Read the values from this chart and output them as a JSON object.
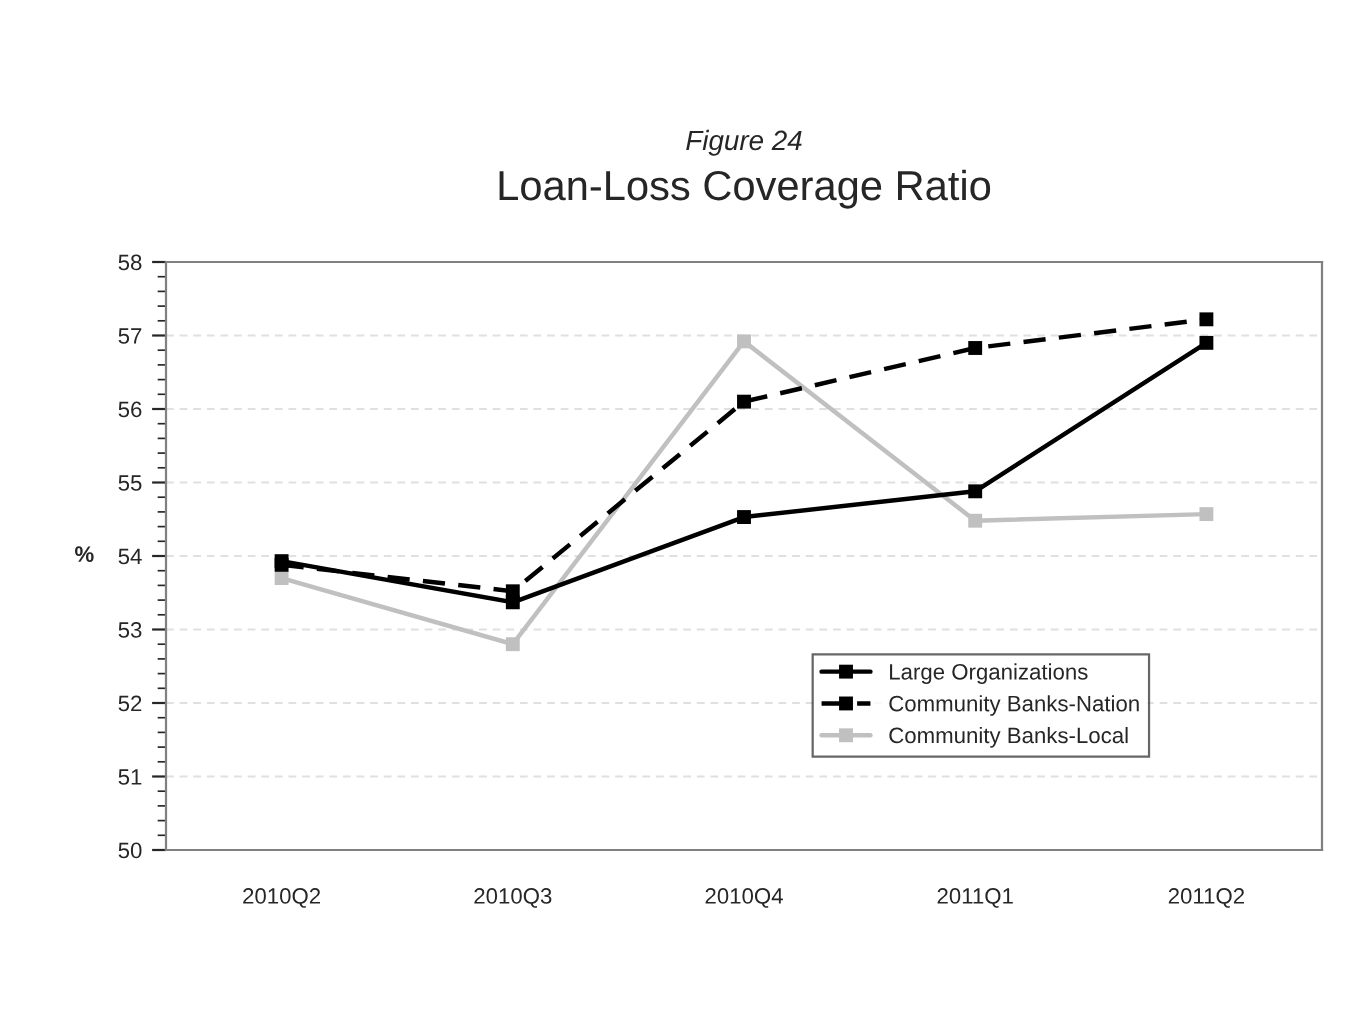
{
  "chart_data": {
    "type": "line",
    "subtitle": "Figure 24",
    "title": "Loan-Loss Coverage Ratio",
    "ylabel": "%",
    "categories": [
      "2010Q2",
      "2010Q3",
      "2010Q4",
      "2011Q1",
      "2011Q2"
    ],
    "series": [
      {
        "name": "Large Organizations",
        "color": "#000000",
        "line_style": "solid",
        "values": [
          53.93,
          53.37,
          54.53,
          54.88,
          56.9
        ]
      },
      {
        "name": "Community Banks-Nation",
        "color": "#000000",
        "line_style": "dashed",
        "values": [
          53.88,
          53.52,
          56.1,
          56.83,
          57.22
        ]
      },
      {
        "name": "Community Banks-Local",
        "color": "#c0c0c0",
        "line_style": "solid",
        "values": [
          53.7,
          52.8,
          56.92,
          54.48,
          54.57
        ]
      }
    ],
    "ylim": [
      50,
      58
    ],
    "yticks": [
      50,
      51,
      52,
      53,
      54,
      55,
      56,
      57,
      58
    ],
    "grid": "y",
    "marker": "square",
    "legend": "bottom right"
  }
}
